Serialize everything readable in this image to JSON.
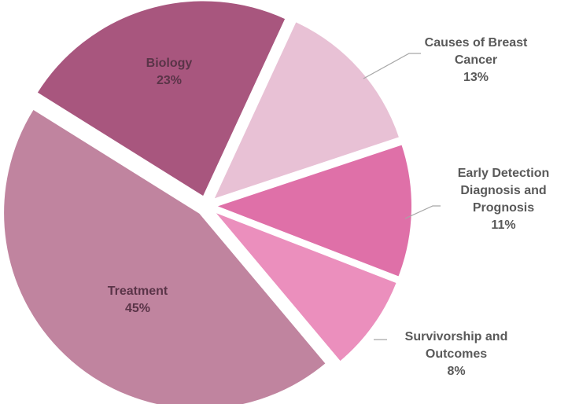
{
  "chart_data": {
    "type": "pie",
    "categories": [
      "Biology",
      "Causes of Breast Cancer",
      "Early Detection Diagnosis and Prognosis",
      "Survivorship and Outcomes",
      "Treatment"
    ],
    "values": [
      23,
      13,
      11,
      8,
      45
    ],
    "value_labels": [
      "23%",
      "13%",
      "11%",
      "8%",
      "45%"
    ],
    "colors": [
      "#a8567e",
      "#e8c1d5",
      "#df70a8",
      "#eb8fbd",
      "#c0849f"
    ]
  }
}
